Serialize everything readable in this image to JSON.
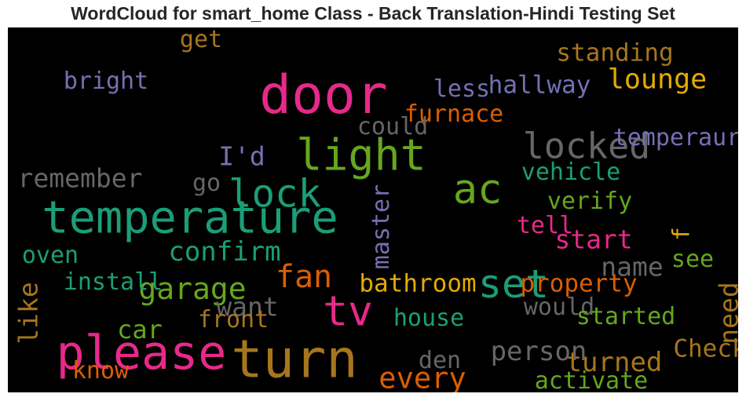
{
  "title": "WordCloud for smart_home Class - Back Translation-Hindi Testing Set",
  "chart_data": {
    "type": "wordcloud",
    "title": "WordCloud for smart_home Class - Back Translation-Hindi Testing Set",
    "background": "#000000",
    "words": [
      {
        "text": "door",
        "weight": 1.0,
        "color": "#e7298a"
      },
      {
        "text": "turn",
        "weight": 0.98,
        "color": "#a6761d"
      },
      {
        "text": "please",
        "weight": 0.85,
        "color": "#e7298a"
      },
      {
        "text": "temperature",
        "weight": 0.78,
        "color": "#1b9e77"
      },
      {
        "text": "light",
        "weight": 0.75,
        "color": "#66a61e"
      },
      {
        "text": "ac",
        "weight": 0.7,
        "color": "#66a61e"
      },
      {
        "text": "tv",
        "weight": 0.72,
        "color": "#e7298a"
      },
      {
        "text": "set",
        "weight": 0.66,
        "color": "#1b9e77"
      },
      {
        "text": "lock",
        "weight": 0.63,
        "color": "#1b9e77"
      },
      {
        "text": "locked",
        "weight": 0.56,
        "color": "#666666"
      },
      {
        "text": "fan",
        "weight": 0.47,
        "color": "#d95f02"
      },
      {
        "text": "garage",
        "weight": 0.42,
        "color": "#66a61e"
      },
      {
        "text": "every",
        "weight": 0.4,
        "color": "#d95f02"
      },
      {
        "text": "lounge",
        "weight": 0.36,
        "color": "#e6ab02"
      },
      {
        "text": "turned",
        "weight": 0.35,
        "color": "#a6761d"
      },
      {
        "text": "person",
        "weight": 0.34,
        "color": "#666666"
      },
      {
        "text": "confirm",
        "weight": 0.34,
        "color": "#1b9e77"
      },
      {
        "text": "remember",
        "weight": 0.33,
        "color": "#666666"
      },
      {
        "text": "want",
        "weight": 0.33,
        "color": "#666666"
      },
      {
        "text": "name",
        "weight": 0.33,
        "color": "#666666"
      },
      {
        "text": "start",
        "weight": 0.33,
        "color": "#e7298a"
      },
      {
        "text": "I'd",
        "weight": 0.32,
        "color": "#7570b3"
      },
      {
        "text": "need",
        "weight": 0.32,
        "color": "#a6761d"
      },
      {
        "text": "like",
        "weight": 0.32,
        "color": "#a6761d"
      },
      {
        "text": "car",
        "weight": 0.31,
        "color": "#66a61e"
      },
      {
        "text": "standing",
        "weight": 0.29,
        "color": "#a6761d"
      },
      {
        "text": "hallway",
        "weight": 0.29,
        "color": "#7570b3"
      },
      {
        "text": "bathroom",
        "weight": 0.28,
        "color": "#e6ab02"
      },
      {
        "text": "property",
        "weight": 0.28,
        "color": "#d95f02"
      },
      {
        "text": "Check",
        "weight": 0.28,
        "color": "#a6761d"
      },
      {
        "text": "bright",
        "weight": 0.27,
        "color": "#7570b3"
      },
      {
        "text": "furnace",
        "weight": 0.27,
        "color": "#d95f02"
      },
      {
        "text": "could",
        "weight": 0.27,
        "color": "#666666"
      },
      {
        "text": "less",
        "weight": 0.27,
        "color": "#7570b3"
      },
      {
        "text": "temperaure",
        "weight": 0.27,
        "color": "#7570b3"
      },
      {
        "text": "vehicle",
        "weight": 0.27,
        "color": "#1b9e77"
      },
      {
        "text": "verify",
        "weight": 0.27,
        "color": "#66a61e"
      },
      {
        "text": "install",
        "weight": 0.27,
        "color": "#1b9e77"
      },
      {
        "text": "front",
        "weight": 0.27,
        "color": "#a6761d"
      },
      {
        "text": "would",
        "weight": 0.27,
        "color": "#666666"
      },
      {
        "text": "started",
        "weight": 0.27,
        "color": "#66a61e"
      },
      {
        "text": "house",
        "weight": 0.27,
        "color": "#1b9e77"
      },
      {
        "text": "master",
        "weight": 0.27,
        "color": "#7570b3"
      },
      {
        "text": "tell",
        "weight": 0.26,
        "color": "#e7298a"
      },
      {
        "text": "see",
        "weight": 0.26,
        "color": "#66a61e"
      },
      {
        "text": "oven",
        "weight": 0.26,
        "color": "#1b9e77"
      },
      {
        "text": "get",
        "weight": 0.26,
        "color": "#a6761d"
      },
      {
        "text": "go",
        "weight": 0.26,
        "color": "#666666"
      },
      {
        "text": "den",
        "weight": 0.26,
        "color": "#666666"
      },
      {
        "text": "know",
        "weight": 0.26,
        "color": "#d95f02"
      },
      {
        "text": "activate",
        "weight": 0.26,
        "color": "#66a61e"
      },
      {
        "text": "f",
        "weight": 0.25,
        "color": "#e6ab02"
      }
    ]
  }
}
